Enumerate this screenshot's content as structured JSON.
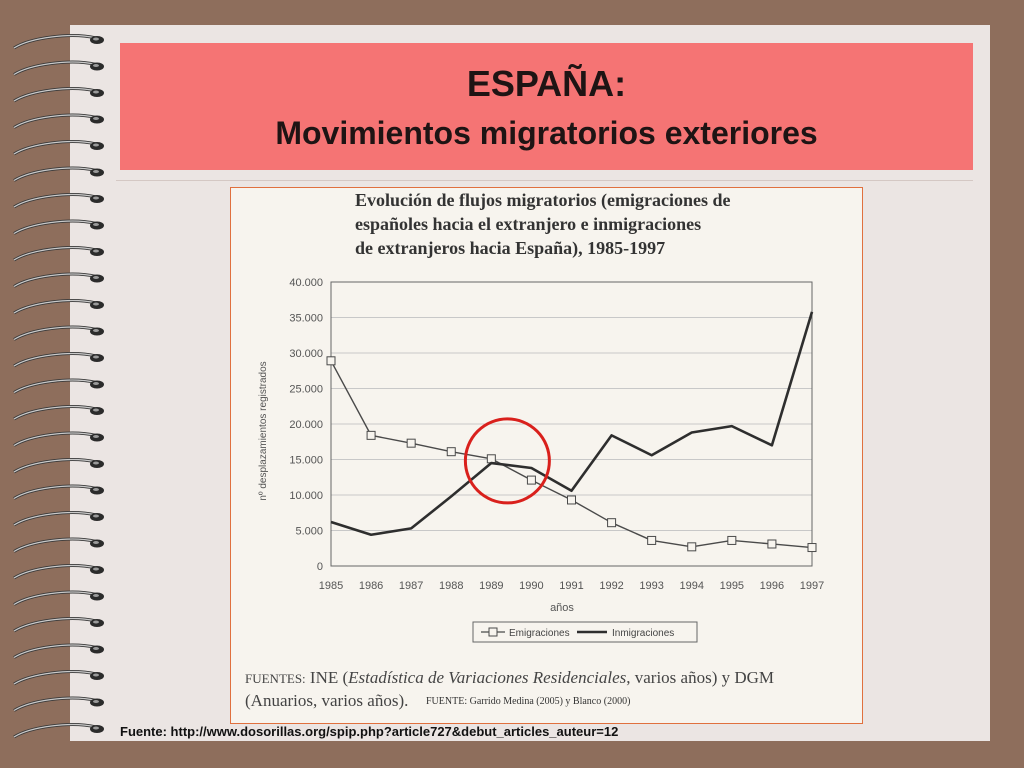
{
  "slide": {
    "title": "ESPAÑA:",
    "subtitle": "Movimientos migratorios exteriores",
    "footer": "Fuente: http://www.dosorillas.org/spip.php?article727&debut_articles_auteur=12",
    "colors": {
      "background": "#8e6e5c",
      "page": "#ebe5e3",
      "title_band": "#f57474",
      "highlight_circle": "#d9201c"
    }
  },
  "figure": {
    "title_lines": [
      "Evolución de flujos migratorios (emigraciones de",
      "españoles hacia el extranjero e inmigraciones",
      "de extranjeros hacia España), 1985-1997"
    ],
    "sources_prefix": "FUENTES:",
    "sources_line1_a": "INE (",
    "sources_line1_italic": "Estadística de Variaciones Residenciales",
    "sources_line1_b": ", varios años) y DGM",
    "sources_line2": "(Anuarios, varios años).",
    "sources_note": "FUENTE: Garrido Medina (2005) y Blanco (2000)"
  },
  "chart_data": {
    "type": "line",
    "x": [
      "1985",
      "1986",
      "1987",
      "1988",
      "1989",
      "1990",
      "1991",
      "1992",
      "1993",
      "1994",
      "1995",
      "1996",
      "1997"
    ],
    "series": [
      {
        "name": "Emigraciones",
        "marker": "square",
        "color": "#4a4a4a",
        "values": [
          28900,
          18400,
          17300,
          16100,
          15100,
          12100,
          9300,
          6100,
          3600,
          2700,
          3600,
          3100,
          2600
        ]
      },
      {
        "name": "Inmigraciones",
        "marker": "none",
        "color": "#2e2e2e",
        "values": [
          6200,
          4400,
          5300,
          9800,
          14500,
          13800,
          10600,
          18400,
          15600,
          18800,
          19700,
          17000,
          35800
        ]
      }
    ],
    "xlabel": "años",
    "ylabel": "nº desplazamientos registrados",
    "yticks": [
      "0",
      "5.000",
      "10.000",
      "15.000",
      "20.000",
      "25.000",
      "30.000",
      "35.000",
      "40.000"
    ],
    "ylim": [
      0,
      40000
    ],
    "grid": true,
    "legend": "bottom",
    "annotation": "circle around 1989 crossing"
  }
}
